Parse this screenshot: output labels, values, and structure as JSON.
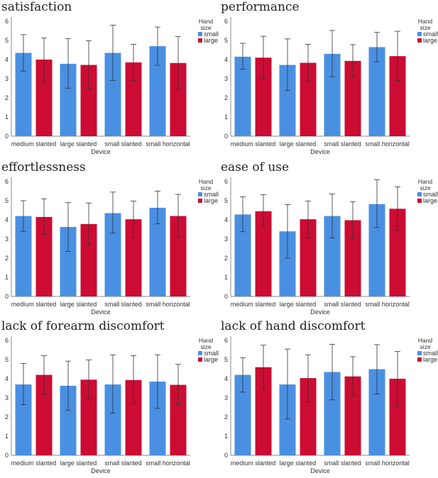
{
  "colors": {
    "small": "#4a90e2",
    "large": "#cc0c33",
    "axis": "#888888",
    "error": "#333333"
  },
  "chart_data": [
    {
      "type": "bar",
      "title": "satisfaction",
      "xlabel": "Device",
      "ylabel": "",
      "ylim": [
        0,
        6
      ],
      "yticks": [
        "0",
        "1",
        "2",
        "3",
        "4",
        "5",
        "6"
      ],
      "categories": [
        "medium slanted",
        "large slanted",
        "small slanted",
        "small horizontal"
      ],
      "legend": {
        "title_line1": "Hand",
        "title_line2": "size",
        "placement": "top-right"
      },
      "series": [
        {
          "name": "small",
          "values": [
            4.35,
            3.78,
            4.35,
            4.7
          ],
          "err_low": [
            3.4,
            2.5,
            2.9,
            3.7
          ],
          "err_high": [
            5.3,
            5.1,
            5.8,
            5.7
          ]
        },
        {
          "name": "large",
          "values": [
            4.0,
            3.72,
            3.85,
            3.82
          ],
          "err_low": [
            2.85,
            2.5,
            2.9,
            2.45
          ],
          "err_high": [
            5.12,
            4.98,
            4.8,
            5.2
          ]
        }
      ]
    },
    {
      "type": "bar",
      "title": "performance",
      "xlabel": "Device",
      "ylabel": "",
      "ylim": [
        0,
        6
      ],
      "yticks": [
        "0",
        "1",
        "2",
        "3",
        "4",
        "5",
        "6"
      ],
      "categories": [
        "medium slanted",
        "large slanted",
        "small slanted",
        "small horizontal"
      ],
      "legend": {
        "title_line1": "Hand",
        "title_line2": "size",
        "placement": "top-right"
      },
      "series": [
        {
          "name": "small",
          "values": [
            4.15,
            3.72,
            4.3,
            4.65
          ],
          "err_low": [
            3.5,
            2.38,
            3.1,
            3.88
          ],
          "err_high": [
            4.85,
            5.08,
            5.52,
            5.42
          ]
        },
        {
          "name": "large",
          "values": [
            4.1,
            3.83,
            3.93,
            4.18
          ],
          "err_low": [
            2.98,
            2.88,
            3.1,
            2.9
          ],
          "err_high": [
            5.22,
            4.8,
            4.78,
            5.48
          ]
        }
      ]
    },
    {
      "type": "bar",
      "title": "effortlessness",
      "xlabel": "Device",
      "ylabel": "",
      "ylim": [
        0,
        6
      ],
      "yticks": [
        "0",
        "1",
        "2",
        "3",
        "4",
        "5",
        "6"
      ],
      "categories": [
        "medium slanted",
        "large slanted",
        "small slanted",
        "small horizontal"
      ],
      "legend": {
        "title_line1": "Hand",
        "title_line2": "size",
        "placement": "top-right"
      },
      "series": [
        {
          "name": "small",
          "values": [
            4.2,
            3.63,
            4.35,
            4.63
          ],
          "err_low": [
            3.4,
            2.35,
            3.3,
            3.8
          ],
          "err_high": [
            5.0,
            4.9,
            5.45,
            5.5
          ]
        },
        {
          "name": "large",
          "values": [
            4.15,
            3.78,
            4.03,
            4.2
          ],
          "err_low": [
            3.25,
            2.68,
            3.08,
            3.1
          ],
          "err_high": [
            5.1,
            4.88,
            4.98,
            5.33
          ]
        }
      ]
    },
    {
      "type": "bar",
      "title": "ease of use",
      "xlabel": "Device",
      "ylabel": "",
      "ylim": [
        0,
        6
      ],
      "yticks": [
        "0",
        "1",
        "2",
        "3",
        "4",
        "5",
        "6"
      ],
      "categories": [
        "medium slanted",
        "large slanted",
        "small slanted",
        "small horizontal"
      ],
      "legend": {
        "title_line1": "Hand",
        "title_line2": "size",
        "placement": "top-right"
      },
      "series": [
        {
          "name": "small",
          "values": [
            4.28,
            3.4,
            4.2,
            4.82
          ],
          "err_low": [
            3.38,
            2.0,
            3.05,
            3.6
          ],
          "err_high": [
            5.2,
            4.8,
            5.35,
            6.1
          ]
        },
        {
          "name": "large",
          "values": [
            4.45,
            4.03,
            3.98,
            4.58
          ],
          "err_low": [
            3.6,
            3.05,
            3.0,
            3.45
          ],
          "err_high": [
            5.32,
            4.98,
            4.95,
            5.72
          ]
        }
      ]
    },
    {
      "type": "bar",
      "title": "lack of forearm discomfort",
      "xlabel": "Device",
      "ylabel": "",
      "ylim": [
        0,
        6
      ],
      "yticks": [
        "0",
        "1",
        "2",
        "3",
        "4",
        "5",
        "6"
      ],
      "categories": [
        "medium slanted",
        "large slanted",
        "small slanted",
        "small horizontal"
      ],
      "legend": {
        "title_line1": "Hand",
        "title_line2": "size",
        "placement": "top-right"
      },
      "series": [
        {
          "name": "small",
          "values": [
            3.7,
            3.63,
            3.7,
            3.85
          ],
          "err_low": [
            2.65,
            2.35,
            2.2,
            2.45
          ],
          "err_high": [
            4.8,
            4.92,
            5.25,
            5.25
          ]
        },
        {
          "name": "large",
          "values": [
            4.2,
            3.95,
            3.93,
            3.68
          ],
          "err_low": [
            3.18,
            2.92,
            2.7,
            2.65
          ],
          "err_high": [
            5.2,
            4.98,
            5.2,
            4.75
          ]
        }
      ]
    },
    {
      "type": "bar",
      "title": "lack of hand discomfort",
      "xlabel": "Device",
      "ylabel": "",
      "ylim": [
        0,
        6
      ],
      "yticks": [
        "0",
        "1",
        "2",
        "3",
        "4",
        "5",
        "6"
      ],
      "categories": [
        "medium slanted",
        "large slanted",
        "small slanted",
        "small horizontal"
      ],
      "legend": {
        "title_line1": "Hand",
        "title_line2": "size",
        "placement": "top-right"
      },
      "series": [
        {
          "name": "small",
          "values": [
            4.2,
            3.7,
            4.35,
            4.5
          ],
          "err_low": [
            3.3,
            1.9,
            2.9,
            3.2
          ],
          "err_high": [
            5.1,
            5.55,
            5.8,
            5.78
          ]
        },
        {
          "name": "large",
          "values": [
            4.6,
            4.03,
            4.12,
            4.0
          ],
          "err_low": [
            3.45,
            2.8,
            3.1,
            2.55
          ],
          "err_high": [
            5.75,
            5.25,
            5.15,
            5.42
          ]
        }
      ]
    }
  ]
}
